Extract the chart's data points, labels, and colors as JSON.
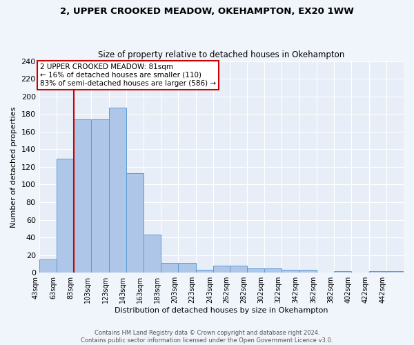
{
  "title1": "2, UPPER CROOKED MEADOW, OKEHAMPTON, EX20 1WW",
  "title2": "Size of property relative to detached houses in Okehampton",
  "xlabel": "Distribution of detached houses by size in Okehampton",
  "ylabel": "Number of detached properties",
  "footnote": "Contains HM Land Registry data © Crown copyright and database right 2024.\nContains public sector information licensed under the Open Government Licence v3.0.",
  "bin_labels": [
    "43sqm",
    "63sqm",
    "83sqm",
    "103sqm",
    "123sqm",
    "143sqm",
    "163sqm",
    "183sqm",
    "203sqm",
    "223sqm",
    "243sqm",
    "262sqm",
    "282sqm",
    "302sqm",
    "322sqm",
    "342sqm",
    "362sqm",
    "382sqm",
    "402sqm",
    "422sqm",
    "442sqm"
  ],
  "bar_values": [
    15,
    129,
    174,
    174,
    187,
    113,
    43,
    11,
    11,
    3,
    8,
    8,
    5,
    5,
    3,
    3,
    0,
    2,
    0,
    2,
    2
  ],
  "bar_color": "#aec6e8",
  "bar_edge_color": "#5b9bd5",
  "vline_x": 83,
  "vline_color": "#cc0000",
  "annotation_text": "2 UPPER CROOKED MEADOW: 81sqm\n← 16% of detached houses are smaller (110)\n83% of semi-detached houses are larger (586) →",
  "annotation_box_color": "#ffffff",
  "annotation_box_edge": "#cc0000",
  "ylim": [
    0,
    240
  ],
  "yticks": [
    0,
    20,
    40,
    60,
    80,
    100,
    120,
    140,
    160,
    180,
    200,
    220,
    240
  ],
  "background_color": "#e8eef7",
  "grid_color": "#ffffff",
  "bin_edges": [
    43,
    63,
    83,
    103,
    123,
    143,
    163,
    183,
    203,
    223,
    243,
    262,
    282,
    302,
    322,
    342,
    362,
    382,
    402,
    422,
    442,
    462
  ],
  "fig_width": 6.0,
  "fig_height": 5.0,
  "dpi": 100
}
